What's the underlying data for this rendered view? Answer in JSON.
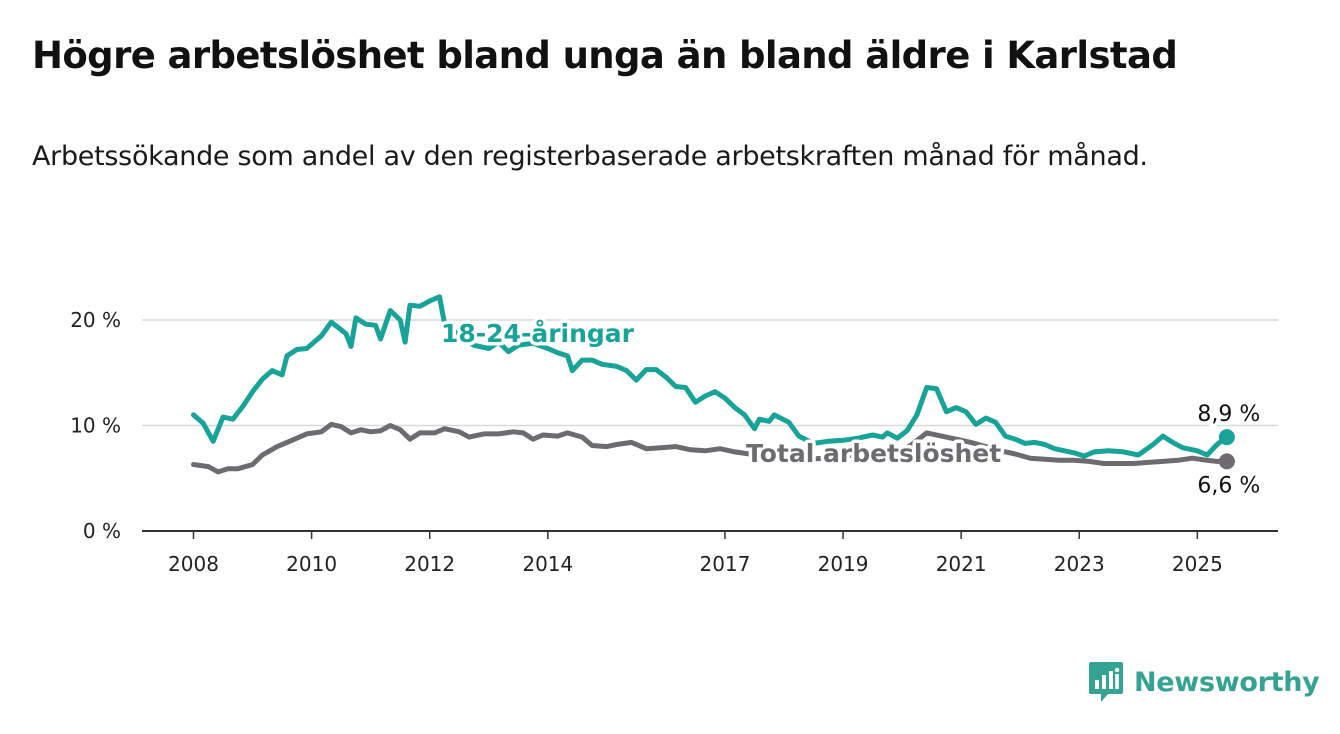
{
  "title": "Högre arbetslöshet bland unga än bland äldre i Karlstad",
  "subtitle": "Arbetssökande som andel av den registerbaserade arbetskraften månad för månad.",
  "brand": {
    "name": "Newsworthy",
    "logo_icon": "newsworthy-bar-chart-logo-icon"
  },
  "colors": {
    "youth": "#17a398",
    "total": "#6e6b70",
    "grid": "#d9d9d9",
    "axis": "#333333",
    "brand": "#35a394"
  },
  "chart_data": {
    "type": "line",
    "title": "Högre arbetslöshet bland unga än bland äldre i Karlstad",
    "subtitle": "Arbetssökande som andel av den registerbaserade arbetskraften månad för månad.",
    "xlabel": "",
    "ylabel": "",
    "x_ticks": [
      "2008",
      "2010",
      "2012",
      "2014",
      "2017",
      "2019",
      "2021",
      "2023",
      "2025"
    ],
    "y_ticks": [
      "0 %",
      "10 %",
      "20 %"
    ],
    "ylim": [
      0,
      22
    ],
    "xlim": [
      "2007-07",
      "2026-04"
    ],
    "grid": true,
    "series": [
      {
        "name": "18-24-åringar",
        "end_label": "8,9 %",
        "points": [
          [
            "2008-01",
            11.0
          ],
          [
            "2008-03",
            10.2
          ],
          [
            "2008-05",
            8.5
          ],
          [
            "2008-07",
            10.8
          ],
          [
            "2008-09",
            10.6
          ],
          [
            "2008-11",
            11.8
          ],
          [
            "2009-01",
            13.2
          ],
          [
            "2009-03",
            14.4
          ],
          [
            "2009-05",
            15.2
          ],
          [
            "2009-07",
            14.8
          ],
          [
            "2009-08",
            16.6
          ],
          [
            "2009-10",
            17.2
          ],
          [
            "2009-12",
            17.3
          ],
          [
            "2010-03",
            18.5
          ],
          [
            "2010-05",
            19.8
          ],
          [
            "2010-08",
            18.7
          ],
          [
            "2010-09",
            17.5
          ],
          [
            "2010-10",
            20.2
          ],
          [
            "2010-12",
            19.6
          ],
          [
            "2011-02",
            19.5
          ],
          [
            "2011-03",
            18.2
          ],
          [
            "2011-05",
            20.9
          ],
          [
            "2011-07",
            20.0
          ],
          [
            "2011-08",
            17.9
          ],
          [
            "2011-09",
            21.4
          ],
          [
            "2011-11",
            21.3
          ],
          [
            "2012-01",
            21.8
          ],
          [
            "2012-03",
            22.2
          ],
          [
            "2012-04",
            19.7
          ],
          [
            "2012-07",
            18.5
          ],
          [
            "2012-10",
            17.6
          ],
          [
            "2013-01",
            17.3
          ],
          [
            "2013-03",
            17.9
          ],
          [
            "2013-05",
            17.0
          ],
          [
            "2013-07",
            17.6
          ],
          [
            "2013-10",
            17.8
          ],
          [
            "2014-01",
            17.3
          ],
          [
            "2014-03",
            16.9
          ],
          [
            "2014-05",
            16.6
          ],
          [
            "2014-06",
            15.2
          ],
          [
            "2014-08",
            16.2
          ],
          [
            "2014-10",
            16.2
          ],
          [
            "2014-12",
            15.8
          ],
          [
            "2015-03",
            15.6
          ],
          [
            "2015-05",
            15.2
          ],
          [
            "2015-07",
            14.3
          ],
          [
            "2015-09",
            15.3
          ],
          [
            "2015-11",
            15.3
          ],
          [
            "2016-01",
            14.6
          ],
          [
            "2016-03",
            13.7
          ],
          [
            "2016-05",
            13.6
          ],
          [
            "2016-07",
            12.2
          ],
          [
            "2016-09",
            12.8
          ],
          [
            "2016-11",
            13.2
          ],
          [
            "2017-01",
            12.6
          ],
          [
            "2017-03",
            11.7
          ],
          [
            "2017-05",
            11.0
          ],
          [
            "2017-07",
            9.7
          ],
          [
            "2017-08",
            10.6
          ],
          [
            "2017-10",
            10.4
          ],
          [
            "2017-11",
            11.0
          ],
          [
            "2018-02",
            10.3
          ],
          [
            "2018-04",
            9.0
          ],
          [
            "2018-07",
            8.3
          ],
          [
            "2018-10",
            8.5
          ],
          [
            "2019-01",
            8.6
          ],
          [
            "2019-04",
            8.8
          ],
          [
            "2019-07",
            9.1
          ],
          [
            "2019-09",
            8.9
          ],
          [
            "2019-10",
            9.3
          ],
          [
            "2019-12",
            8.8
          ],
          [
            "2020-02",
            9.5
          ],
          [
            "2020-04",
            11.0
          ],
          [
            "2020-06",
            13.6
          ],
          [
            "2020-08",
            13.5
          ],
          [
            "2020-10",
            11.3
          ],
          [
            "2020-12",
            11.7
          ],
          [
            "2021-02",
            11.3
          ],
          [
            "2021-04",
            10.1
          ],
          [
            "2021-06",
            10.7
          ],
          [
            "2021-08",
            10.3
          ],
          [
            "2021-10",
            9.0
          ],
          [
            "2021-12",
            8.7
          ],
          [
            "2022-02",
            8.3
          ],
          [
            "2022-04",
            8.4
          ],
          [
            "2022-06",
            8.2
          ],
          [
            "2022-08",
            7.8
          ],
          [
            "2022-10",
            7.6
          ],
          [
            "2022-12",
            7.4
          ],
          [
            "2023-02",
            7.1
          ],
          [
            "2023-04",
            7.5
          ],
          [
            "2023-07",
            7.6
          ],
          [
            "2023-10",
            7.5
          ],
          [
            "2024-01",
            7.2
          ],
          [
            "2024-04",
            8.2
          ],
          [
            "2024-06",
            9.0
          ],
          [
            "2024-08",
            8.4
          ],
          [
            "2024-10",
            7.9
          ],
          [
            "2025-01",
            7.6
          ],
          [
            "2025-03",
            7.2
          ],
          [
            "2025-05",
            8.2
          ],
          [
            "2025-07",
            8.9
          ]
        ]
      },
      {
        "name": "Total arbetslöshet",
        "end_label": "6,6 %",
        "points": [
          [
            "2008-01",
            6.3
          ],
          [
            "2008-04",
            6.1
          ],
          [
            "2008-06",
            5.6
          ],
          [
            "2008-08",
            5.9
          ],
          [
            "2008-10",
            5.9
          ],
          [
            "2009-01",
            6.3
          ],
          [
            "2009-03",
            7.2
          ],
          [
            "2009-06",
            8.0
          ],
          [
            "2009-09",
            8.6
          ],
          [
            "2009-12",
            9.2
          ],
          [
            "2010-03",
            9.4
          ],
          [
            "2010-05",
            10.1
          ],
          [
            "2010-07",
            9.9
          ],
          [
            "2010-09",
            9.3
          ],
          [
            "2010-11",
            9.6
          ],
          [
            "2011-01",
            9.4
          ],
          [
            "2011-03",
            9.5
          ],
          [
            "2011-05",
            10.0
          ],
          [
            "2011-07",
            9.6
          ],
          [
            "2011-09",
            8.7
          ],
          [
            "2011-11",
            9.3
          ],
          [
            "2012-02",
            9.3
          ],
          [
            "2012-04",
            9.7
          ],
          [
            "2012-07",
            9.4
          ],
          [
            "2012-09",
            8.9
          ],
          [
            "2012-12",
            9.2
          ],
          [
            "2013-03",
            9.2
          ],
          [
            "2013-06",
            9.4
          ],
          [
            "2013-08",
            9.3
          ],
          [
            "2013-10",
            8.7
          ],
          [
            "2013-12",
            9.1
          ],
          [
            "2014-03",
            9.0
          ],
          [
            "2014-05",
            9.3
          ],
          [
            "2014-08",
            8.9
          ],
          [
            "2014-10",
            8.1
          ],
          [
            "2015-01",
            8.0
          ],
          [
            "2015-03",
            8.2
          ],
          [
            "2015-06",
            8.4
          ],
          [
            "2015-09",
            7.8
          ],
          [
            "2015-12",
            7.9
          ],
          [
            "2016-03",
            8.0
          ],
          [
            "2016-06",
            7.7
          ],
          [
            "2016-09",
            7.6
          ],
          [
            "2016-12",
            7.8
          ],
          [
            "2017-03",
            7.5
          ],
          [
            "2017-06",
            7.3
          ],
          [
            "2017-09",
            7.2
          ],
          [
            "2017-12",
            7.4
          ],
          [
            "2018-03",
            7.0
          ],
          [
            "2018-06",
            6.8
          ],
          [
            "2018-09",
            6.9
          ],
          [
            "2018-12",
            7.0
          ],
          [
            "2019-03",
            7.2
          ],
          [
            "2019-06",
            7.4
          ],
          [
            "2019-09",
            7.1
          ],
          [
            "2019-12",
            7.4
          ],
          [
            "2020-03",
            8.2
          ],
          [
            "2020-06",
            9.3
          ],
          [
            "2020-09",
            9.0
          ],
          [
            "2020-12",
            8.7
          ],
          [
            "2021-03",
            8.4
          ],
          [
            "2021-06",
            8.0
          ],
          [
            "2021-09",
            7.6
          ],
          [
            "2021-12",
            7.3
          ],
          [
            "2022-03",
            6.9
          ],
          [
            "2022-06",
            6.8
          ],
          [
            "2022-09",
            6.7
          ],
          [
            "2022-12",
            6.7
          ],
          [
            "2023-03",
            6.6
          ],
          [
            "2023-06",
            6.4
          ],
          [
            "2023-09",
            6.4
          ],
          [
            "2023-12",
            6.4
          ],
          [
            "2024-03",
            6.5
          ],
          [
            "2024-06",
            6.6
          ],
          [
            "2024-09",
            6.7
          ],
          [
            "2024-12",
            6.9
          ],
          [
            "2025-03",
            6.7
          ],
          [
            "2025-05",
            6.6
          ],
          [
            "2025-07",
            6.6
          ]
        ]
      }
    ]
  }
}
